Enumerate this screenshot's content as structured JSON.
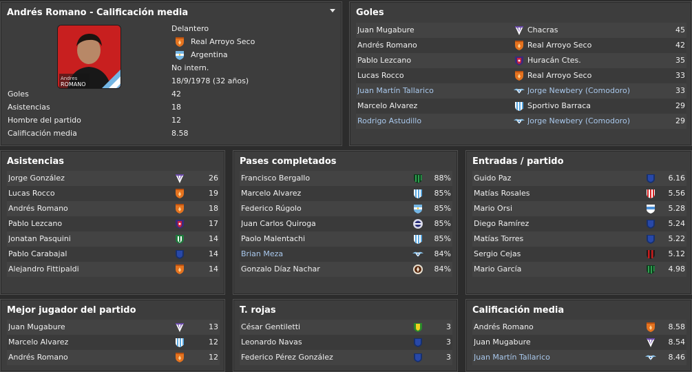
{
  "player": {
    "title": "Andrés Romano - Calificación media",
    "photo_caption_first": "Andres",
    "photo_caption_last": "ROMANO",
    "position": "Delantero",
    "club": "Real Arroyo Seco",
    "nation": "Argentina",
    "intl": "No intern.",
    "dob": "18/9/1978 (32 años)",
    "stats": [
      {
        "label": "Goles",
        "value": "42"
      },
      {
        "label": "Asistencias",
        "value": "18"
      },
      {
        "label": "Hombre del partido",
        "value": "12"
      },
      {
        "label": "Calificación media",
        "value": "8.58"
      }
    ]
  },
  "goles": {
    "title": "Goles",
    "rows": [
      {
        "name": "Juan Mugabure",
        "club": "Chacras",
        "value": "45",
        "crest": "purple-stripes-crest",
        "link": false
      },
      {
        "name": "Andrés Romano",
        "club": "Real Arroyo Seco",
        "value": "42",
        "crest": "orange-shield-crest",
        "link": false
      },
      {
        "name": "Pablo Lezcano",
        "club": "Huracán Ctes.",
        "value": "35",
        "crest": "red-blue-shield-crest",
        "link": false
      },
      {
        "name": "Lucas Rocco",
        "club": "Real Arroyo Seco",
        "value": "33",
        "crest": "orange-shield-crest",
        "link": false
      },
      {
        "name": "Juan Martín Tallarico",
        "club": "Jorge Newbery (Comodoro)",
        "value": "33",
        "crest": "wings-crest",
        "link": true
      },
      {
        "name": "Marcelo Alvarez",
        "club": "Sportivo Barraca",
        "value": "29",
        "crest": "sky-stripes-crest",
        "link": false
      },
      {
        "name": "Rodrigo Astudillo",
        "club": "Jorge Newbery (Comodoro)",
        "value": "29",
        "crest": "wings-crest",
        "link": true
      }
    ]
  },
  "asistencias": {
    "title": "Asistencias",
    "rows": [
      {
        "name": "Jorge González",
        "value": "26",
        "crest": "purple-stripes-crest",
        "link": false
      },
      {
        "name": "Lucas Rocco",
        "value": "19",
        "crest": "orange-shield-crest",
        "link": false
      },
      {
        "name": "Andrés Romano",
        "value": "18",
        "crest": "orange-shield-crest",
        "link": false
      },
      {
        "name": "Pablo Lezcano",
        "value": "17",
        "crest": "red-blue-shield-crest",
        "link": false
      },
      {
        "name": "Jonatan Pasquini",
        "value": "14",
        "crest": "green-shield-crest",
        "link": false
      },
      {
        "name": "Pablo Carabajal",
        "value": "14",
        "crest": "blue-shield-crest",
        "link": false
      },
      {
        "name": "Alejandro Fittipaldi",
        "value": "14",
        "crest": "orange-shield-crest",
        "link": false
      }
    ]
  },
  "pases": {
    "title": "Pases completados",
    "rows": [
      {
        "name": "Francisco Bergallo",
        "value": "88%",
        "crest": "green-stripes-crest",
        "link": false
      },
      {
        "name": "Marcelo Alvarez",
        "value": "85%",
        "crest": "sky-stripes-crest",
        "link": false
      },
      {
        "name": "Federico Rúgolo",
        "value": "85%",
        "crest": "sky-shield-crest",
        "link": false
      },
      {
        "name": "Juan Carlos Quiroga",
        "value": "85%",
        "crest": "round-crest",
        "link": false
      },
      {
        "name": "Paolo Malentachi",
        "value": "85%",
        "crest": "sky-stripes-crest",
        "link": false
      },
      {
        "name": "Brian Meza",
        "value": "84%",
        "crest": "wings-crest",
        "link": true
      },
      {
        "name": "Gonzalo Díaz Nachar",
        "value": "84%",
        "crest": "brown-round-crest",
        "link": false
      }
    ]
  },
  "entradas": {
    "title": "Entradas / partido",
    "rows": [
      {
        "name": "Guido Paz",
        "value": "6.16",
        "crest": "blue-shield-crest",
        "link": false
      },
      {
        "name": "Matías Rosales",
        "value": "5.56",
        "crest": "red-stripes-crest",
        "link": false
      },
      {
        "name": "Mario Orsi",
        "value": "5.28",
        "crest": "sky-band-crest",
        "link": false
      },
      {
        "name": "Diego Ramírez",
        "value": "5.24",
        "crest": "blue-shield-crest",
        "link": false
      },
      {
        "name": "Matías Torres",
        "value": "5.22",
        "crest": "blue-shield-crest",
        "link": false
      },
      {
        "name": "Sergio Cejas",
        "value": "5.12",
        "crest": "red-black-stripes-crest",
        "link": false
      },
      {
        "name": "Mario García",
        "value": "4.98",
        "crest": "green-stripes-crest",
        "link": false
      }
    ]
  },
  "mejor": {
    "title": "Mejor jugador del partido",
    "rows": [
      {
        "name": "Juan Mugabure",
        "value": "13",
        "crest": "purple-stripes-crest",
        "link": false
      },
      {
        "name": "Marcelo Alvarez",
        "value": "12",
        "crest": "sky-stripes-crest",
        "link": false
      },
      {
        "name": "Andrés Romano",
        "value": "12",
        "crest": "orange-shield-crest",
        "link": false
      }
    ]
  },
  "rojas": {
    "title": "T. rojas",
    "rows": [
      {
        "name": "César Gentiletti",
        "value": "3",
        "crest": "yellow-green-shield-crest",
        "link": false
      },
      {
        "name": "Leonardo Navas",
        "value": "3",
        "crest": "blue-shield-crest",
        "link": false
      },
      {
        "name": "Federico Pérez González",
        "value": "3",
        "crest": "blue-shield-crest",
        "link": false
      }
    ]
  },
  "calificacion": {
    "title": "Calificación media",
    "rows": [
      {
        "name": "Andrés Romano",
        "value": "8.58",
        "crest": "orange-shield-crest",
        "link": false
      },
      {
        "name": "Juan Mugabure",
        "value": "8.54",
        "crest": "purple-stripes-crest",
        "link": false
      },
      {
        "name": "Juan Martín Tallarico",
        "value": "8.46",
        "crest": "wings-crest",
        "link": true
      }
    ]
  }
}
